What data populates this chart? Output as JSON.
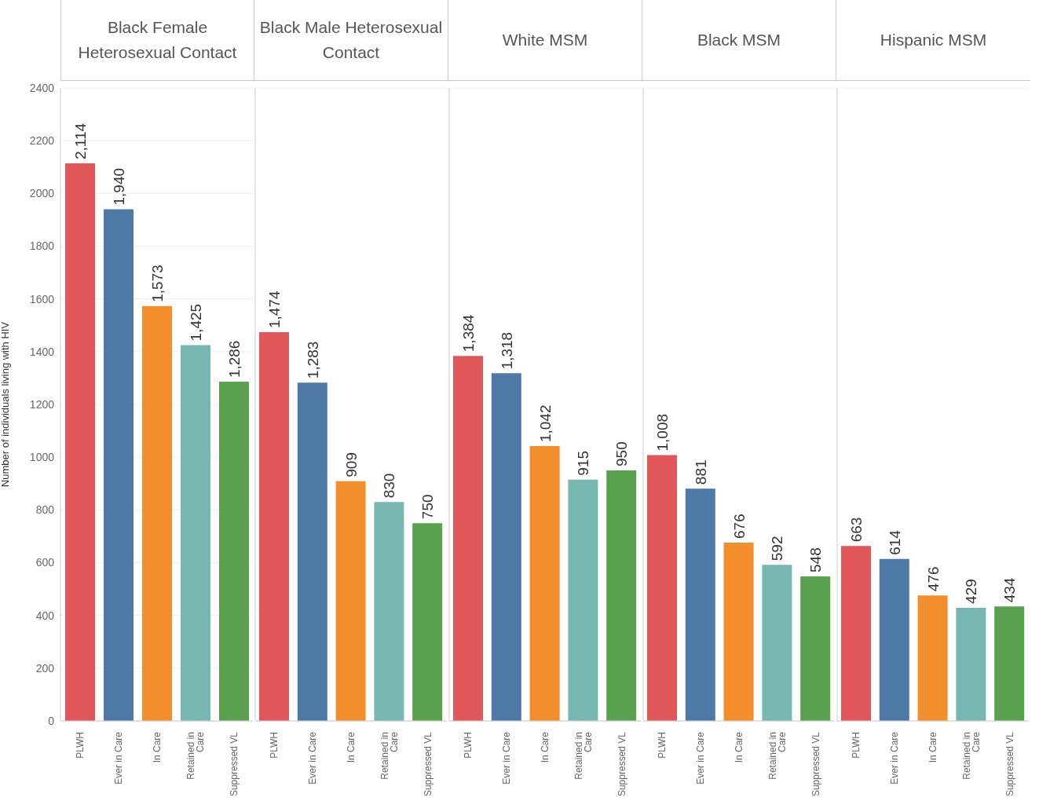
{
  "chart_data": [
    {
      "type": "bar",
      "title": "Black Female Heterosexual Contact",
      "ylabel": "Number of individuals living with HIV",
      "categories": [
        "PLWH",
        "Ever in Care",
        "In Care",
        "Retained in Care",
        "Suppressed VL"
      ],
      "values": [
        2114,
        1940,
        1573,
        1425,
        1286
      ],
      "value_labels": [
        "2,114",
        "1,940",
        "1,573",
        "1,425",
        "1,286"
      ],
      "colors": [
        "#e15759",
        "#4e79a7",
        "#f28e2b",
        "#76b7b2",
        "#59a14f"
      ],
      "ylim": [
        0,
        2400
      ],
      "yticks": [
        0,
        200,
        400,
        600,
        800,
        1000,
        1200,
        1400,
        1600,
        1800,
        2000,
        2200,
        2400
      ],
      "grid": "y"
    },
    {
      "type": "bar",
      "title": "Black Male Heterosexual Contact",
      "categories": [
        "PLWH",
        "Ever in Care",
        "In Care",
        "Retained in Care",
        "Suppressed VL"
      ],
      "values": [
        1474,
        1283,
        909,
        830,
        750
      ],
      "value_labels": [
        "1,474",
        "1,283",
        "909",
        "830",
        "750"
      ],
      "colors": [
        "#e15759",
        "#4e79a7",
        "#f28e2b",
        "#76b7b2",
        "#59a14f"
      ],
      "ylim": [
        0,
        2400
      ],
      "yticks": [
        0,
        200,
        400,
        600,
        800,
        1000,
        1200,
        1400,
        1600,
        1800,
        2000,
        2200,
        2400
      ],
      "grid": "y",
      "tick_labels": "x"
    },
    {
      "type": "bar",
      "title": "White MSM",
      "categories": [
        "PLWH",
        "Ever in Care",
        "In Care",
        "Retained in Care",
        "Suppressed VL"
      ],
      "values": [
        1384,
        1318,
        1042,
        915,
        950
      ],
      "value_labels": [
        "1,384",
        "1,318",
        "1,042",
        "915",
        "950"
      ],
      "colors": [
        "#e15759",
        "#4e79a7",
        "#f28e2b",
        "#76b7b2",
        "#59a14f"
      ],
      "ylim": [
        0,
        2400
      ],
      "yticks": [
        0,
        200,
        400,
        600,
        800,
        1000,
        1200,
        1400,
        1600,
        1800,
        2000,
        2200,
        2400
      ],
      "grid": "y",
      "tick_labels": "x"
    },
    {
      "type": "bar",
      "title": "Black MSM",
      "categories": [
        "PLWH",
        "Ever in Care",
        "In Care",
        "Retained in Care",
        "Suppressed VL"
      ],
      "values": [
        1008,
        881,
        676,
        592,
        548
      ],
      "value_labels": [
        "1,008",
        "881",
        "676",
        "592",
        "548"
      ],
      "colors": [
        "#e15759",
        "#4e79a7",
        "#f28e2b",
        "#76b7b2",
        "#59a14f"
      ],
      "ylim": [
        0,
        2400
      ],
      "yticks": [
        0,
        200,
        400,
        600,
        800,
        1000,
        1200,
        1400,
        1600,
        1800,
        2000,
        2200,
        2400
      ],
      "grid": "y",
      "tick_labels": "x"
    },
    {
      "type": "bar",
      "title": "Hispanic MSM",
      "categories": [
        "PLWH",
        "Ever in Care",
        "In Care",
        "Retained in Care",
        "Suppressed VL"
      ],
      "values": [
        663,
        614,
        476,
        429,
        434
      ],
      "value_labels": [
        "663",
        "614",
        "476",
        "429",
        "434"
      ],
      "colors": [
        "#e15759",
        "#4e79a7",
        "#f28e2b",
        "#76b7b2",
        "#59a14f"
      ],
      "ylim": [
        0,
        2400
      ],
      "yticks": [
        0,
        200,
        400,
        600,
        800,
        1000,
        1200,
        1400,
        1600,
        1800,
        2000,
        2200,
        2400
      ],
      "grid": "y",
      "tick_labels": "x"
    }
  ]
}
